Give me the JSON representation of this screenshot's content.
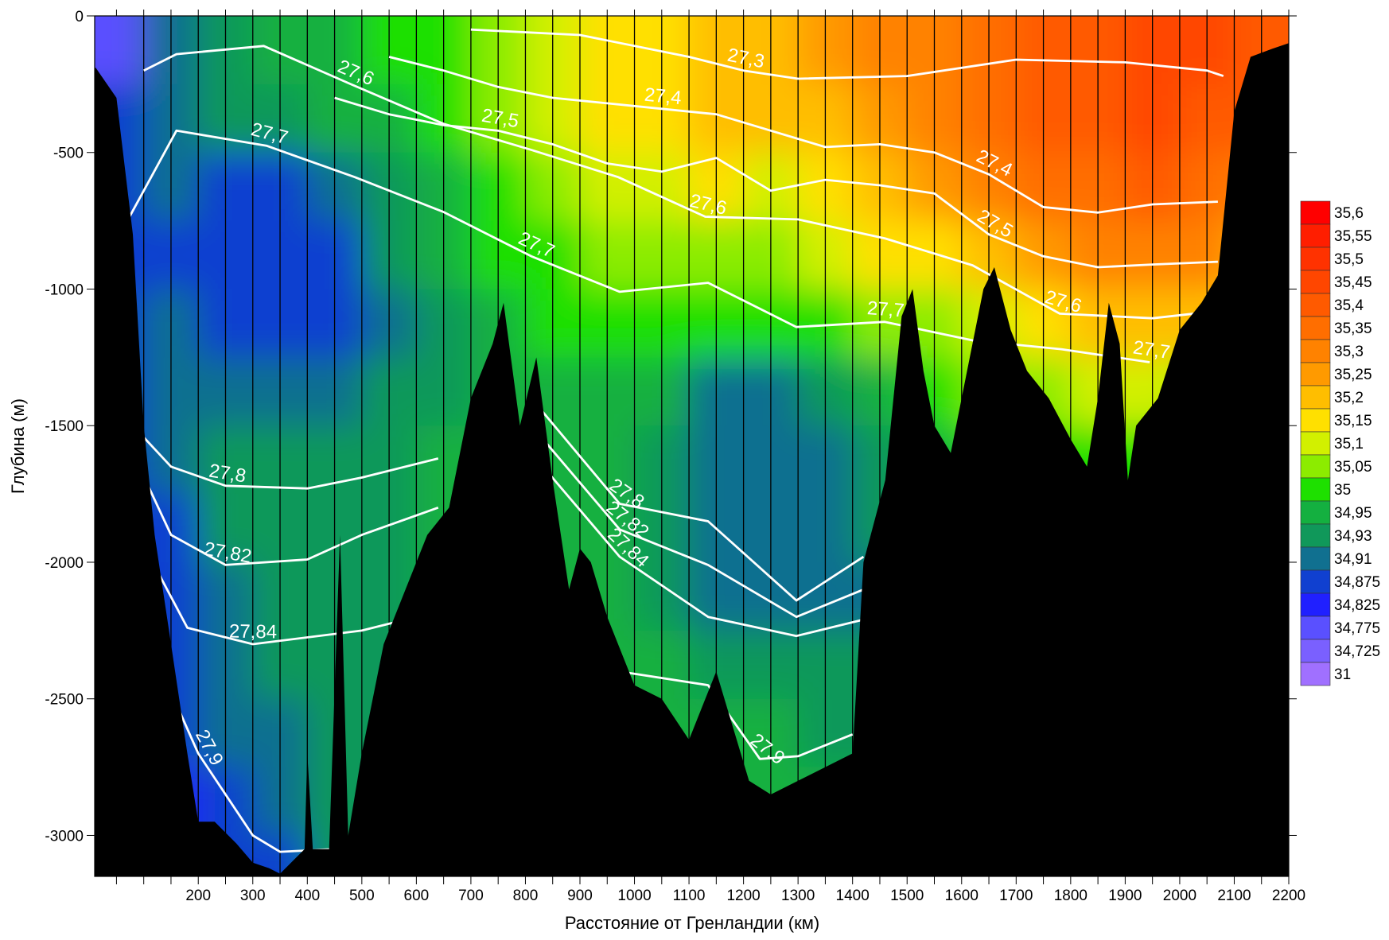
{
  "chart_data": {
    "type": "section",
    "x_label": "Расстояние от Гренландии (км)",
    "y_label": "Глубина (м)",
    "xlim": [
      10,
      2200
    ],
    "ylim": [
      -3150,
      0
    ],
    "xticks": [
      200,
      300,
      400,
      500,
      600,
      700,
      800,
      900,
      1000,
      1100,
      1200,
      1300,
      1400,
      1500,
      1600,
      1700,
      1800,
      1900,
      2000,
      2100,
      2200
    ],
    "xminorticks": [
      50,
      100,
      150,
      250,
      350,
      450,
      550,
      650,
      750,
      850,
      950,
      1050,
      1150,
      1250,
      1350,
      1450,
      1550,
      1650,
      1750,
      1850,
      1950,
      2050,
      2150
    ],
    "yticks": [
      0,
      -500,
      -1000,
      -1500,
      -2000,
      -2500,
      -3000
    ],
    "stations": [
      100,
      150,
      200,
      250,
      300,
      350,
      400,
      450,
      500,
      550,
      600,
      650,
      700,
      750,
      800,
      850,
      900,
      950,
      1000,
      1050,
      1100,
      1150,
      1200,
      1250,
      1300,
      1350,
      1400,
      1450,
      1500,
      1550,
      1600,
      1650,
      1700,
      1750,
      1800,
      1850,
      1900,
      1950,
      2000,
      2050,
      2100,
      2150
    ],
    "colorbar": [
      {
        "value": 35.6,
        "label": "35,6",
        "color": "#ff0000"
      },
      {
        "value": 35.55,
        "label": "35,55",
        "color": "#ff1e00"
      },
      {
        "value": 35.5,
        "label": "35,5",
        "color": "#ff3200"
      },
      {
        "value": 35.45,
        "label": "35,45",
        "color": "#ff4600"
      },
      {
        "value": 35.4,
        "label": "35,4",
        "color": "#ff5a00"
      },
      {
        "value": 35.35,
        "label": "35,35",
        "color": "#ff6e00"
      },
      {
        "value": 35.3,
        "label": "35,3",
        "color": "#ff8200"
      },
      {
        "value": 35.25,
        "label": "35,25",
        "color": "#ff9a00"
      },
      {
        "value": 35.2,
        "label": "35,2",
        "color": "#ffbe00"
      },
      {
        "value": 35.15,
        "label": "35,15",
        "color": "#ffe000"
      },
      {
        "value": 35.1,
        "label": "35,1",
        "color": "#d2f000"
      },
      {
        "value": 35.05,
        "label": "35,05",
        "color": "#8cec00"
      },
      {
        "value": 35,
        "color": "#1ee000"
      },
      {
        "value": 34.95,
        "label": "34,95",
        "color": "#14b040"
      },
      {
        "value": 34.93,
        "label": "34,93",
        "color": "#10985a"
      },
      {
        "value": 34.91,
        "label": "34,91",
        "color": "#107090"
      },
      {
        "value": 34.875,
        "label": "34,875",
        "color": "#1040d0"
      },
      {
        "value": 34.825,
        "label": "34,825",
        "color": "#2020ff"
      },
      {
        "value": 34.775,
        "label": "34,775",
        "color": "#5a50ff"
      },
      {
        "value": 34.725,
        "label": "34,725",
        "color": "#7a60ff"
      },
      {
        "value": 31,
        "color": "#a070ff"
      }
    ],
    "salinity": {
      "x": [
        50,
        150,
        250,
        350,
        450,
        550,
        650,
        750,
        850,
        950,
        1050,
        1150,
        1250,
        1350,
        1450,
        1550,
        1650,
        1750,
        1850,
        1950,
        2050,
        2150
      ],
      "depth": [
        -125,
        -375,
        -625,
        -875,
        -1125,
        -1375,
        -1625,
        -1875,
        -2125,
        -2375,
        -2625,
        -2875,
        -3125
      ],
      "values": [
        [
          34.8,
          34.92,
          34.94,
          34.96,
          34.98,
          35.0,
          35.02,
          35.06,
          35.12,
          35.16,
          35.18,
          35.2,
          35.22,
          35.25,
          35.3,
          35.33,
          35.37,
          35.4,
          35.43,
          35.45,
          35.45,
          35.4
        ],
        [
          34.9,
          34.92,
          34.93,
          34.94,
          34.95,
          34.97,
          35.0,
          35.05,
          35.12,
          35.15,
          35.17,
          35.2,
          35.2,
          35.22,
          35.27,
          35.3,
          35.35,
          35.4,
          35.43,
          35.45,
          35.42,
          35.4
        ],
        [
          34.9,
          34.91,
          34.89,
          34.9,
          34.92,
          34.94,
          34.97,
          35.02,
          35.07,
          35.1,
          35.12,
          35.15,
          35.14,
          35.17,
          35.22,
          35.25,
          35.3,
          35.35,
          35.38,
          35.4,
          35.38,
          35.3
        ],
        [
          34.9,
          34.9,
          34.88,
          34.88,
          34.9,
          34.93,
          34.95,
          35.0,
          35.03,
          35.05,
          35.07,
          35.08,
          35.07,
          35.1,
          35.15,
          35.17,
          35.22,
          35.28,
          35.32,
          35.33,
          35.3,
          35.2
        ],
        [
          34.9,
          34.91,
          34.88,
          34.88,
          34.9,
          34.92,
          34.94,
          34.97,
          35.0,
          35.01,
          35.02,
          35.0,
          35.0,
          35.02,
          35.05,
          35.07,
          35.1,
          35.15,
          35.2,
          35.22,
          35.2,
          35.1
        ],
        [
          34.9,
          34.92,
          34.91,
          34.91,
          34.92,
          34.93,
          34.94,
          34.96,
          34.98,
          34.98,
          34.95,
          34.92,
          34.92,
          34.93,
          34.95,
          35.0,
          35.05,
          35.07,
          35.1,
          35.1,
          35.05,
          35.0
        ],
        [
          34.9,
          34.92,
          34.93,
          34.93,
          34.93,
          34.94,
          34.95,
          34.96,
          34.97,
          34.96,
          34.93,
          34.91,
          34.91,
          34.92,
          34.94,
          34.97,
          35.0,
          35.02,
          35.03,
          35.02,
          35.0,
          35.0
        ],
        [
          34.88,
          34.9,
          34.93,
          34.93,
          34.93,
          34.94,
          34.95,
          34.96,
          34.97,
          34.96,
          34.93,
          34.91,
          34.91,
          34.91,
          34.93,
          34.95,
          34.97,
          35.0,
          35.0,
          35.0,
          35.0,
          35.0
        ],
        [
          34.88,
          34.9,
          34.92,
          34.93,
          34.93,
          34.94,
          34.95,
          34.96,
          34.97,
          34.96,
          34.94,
          34.92,
          34.91,
          34.91,
          34.92,
          34.95,
          34.95,
          34.95,
          34.95,
          34.95,
          34.95,
          34.95
        ],
        [
          34.86,
          34.88,
          34.92,
          34.93,
          34.93,
          34.94,
          34.95,
          34.96,
          34.97,
          34.97,
          34.95,
          34.94,
          34.93,
          34.93,
          34.93,
          34.95,
          34.95,
          34.95,
          34.95,
          34.95,
          34.95,
          34.95
        ],
        [
          34.86,
          34.88,
          34.91,
          34.92,
          34.93,
          34.94,
          34.95,
          34.96,
          34.97,
          34.97,
          34.97,
          34.96,
          34.95,
          34.94,
          34.94,
          34.95,
          34.95,
          34.95,
          34.95,
          34.95,
          34.95,
          34.95
        ],
        [
          34.85,
          34.86,
          34.89,
          34.91,
          34.93,
          34.94,
          34.95,
          34.96,
          34.97,
          34.97,
          34.97,
          34.97,
          34.96,
          34.95,
          34.95,
          34.95,
          34.95,
          34.95,
          34.95,
          34.95,
          34.95,
          34.95
        ],
        [
          34.85,
          34.86,
          34.88,
          34.9,
          34.93,
          34.94,
          34.95,
          34.96,
          34.97,
          34.97,
          34.97,
          34.97,
          34.96,
          34.95,
          34.95,
          34.95,
          34.95,
          34.95,
          34.95,
          34.95,
          34.95,
          34.95
        ]
      ]
    },
    "isopycnals": [
      {
        "name": "27,3",
        "color": "#ffffff",
        "x": [
          700,
          900,
          1100,
          1200,
          1300,
          1500,
          1700,
          1900,
          2050,
          2080
        ],
        "values": [
          -50,
          -70,
          -150,
          -200,
          -230,
          -220,
          -160,
          -170,
          -200,
          -220
        ]
      },
      {
        "name": "27,4",
        "color": "#ffffff",
        "x": [
          550,
          650,
          750,
          850,
          950,
          1050,
          1150,
          1250,
          1350,
          1450,
          1550,
          1650,
          1750,
          1850,
          1950,
          2070
        ],
        "values": [
          -150,
          -200,
          -260,
          -300,
          -320,
          -340,
          -360,
          -420,
          -480,
          -470,
          -500,
          -580,
          -700,
          -720,
          -690,
          -680
        ]
      },
      {
        "name": "27,5",
        "color": "#ffffff",
        "x": [
          450,
          550,
          650,
          750,
          850,
          950,
          1050,
          1150,
          1250,
          1350,
          1450,
          1550,
          1650,
          1750,
          1850,
          1950,
          2070
        ],
        "values": [
          -300,
          -360,
          -400,
          -420,
          -470,
          -540,
          -570,
          -520,
          -640,
          -600,
          -620,
          -650,
          -800,
          -880,
          -920,
          -910,
          -900
        ]
      },
      {
        "name": "27,6",
        "color": "#ffffff",
        "x": [
          100,
          160,
          320,
          480,
          650,
          810,
          970,
          1130,
          1300,
          1460,
          1620,
          1780,
          1950,
          2070
        ],
        "values": [
          -200,
          -140,
          -110,
          -250,
          -395,
          -490,
          -590,
          -735,
          -745,
          -815,
          -913,
          -1090,
          -1107,
          -1080
        ]
      },
      {
        "name": "27,7",
        "color": "#ffffff",
        "x": [
          70,
          160,
          325,
          487,
          650,
          811,
          973,
          1135,
          1297,
          1459,
          1621,
          1783,
          1945
        ],
        "values": [
          -750,
          -420,
          -475,
          -590,
          -718,
          -880,
          -1010,
          -977,
          -1139,
          -1120,
          -1188,
          -1220,
          -1268
        ]
      },
      {
        "name": "27,8",
        "color": "#ffffff",
        "x": [
          80,
          150,
          250,
          400,
          500,
          640,
          700,
          811,
          973,
          1135,
          1297,
          1420
        ],
        "values": [
          -1500,
          -1650,
          -1720,
          -1730,
          -1690,
          -1620,
          null,
          -1400,
          -1786,
          -1850,
          -2140,
          -1980
        ]
      },
      {
        "name": "27,82",
        "color": "#ffffff",
        "x": [
          80,
          150,
          250,
          400,
          500,
          640,
          700,
          811,
          973,
          1135,
          1297,
          1420
        ],
        "values": [
          -1600,
          -1900,
          -2010,
          -1990,
          -1900,
          -1800,
          null,
          -1500,
          -1880,
          -2010,
          -2200,
          -2100
        ]
      },
      {
        "name": "27,84",
        "color": "#ffffff",
        "x": [
          90,
          180,
          300,
          500,
          640,
          700,
          811,
          973,
          1135,
          1297,
          1420
        ],
        "values": [
          -1900,
          -2240,
          -2300,
          -2250,
          -2180,
          null,
          -1600,
          -1980,
          -2200,
          -2270,
          -2210
        ]
      },
      {
        "name": "27,9",
        "color": "#ffffff",
        "x": [
          100,
          200,
          300,
          350,
          450,
          700,
          973,
          1135,
          1230,
          1300,
          1400
        ],
        "values": [
          -2250,
          -2700,
          -3000,
          -3060,
          -3050,
          null,
          -2400,
          -2450,
          -2720,
          -2710,
          -2630
        ]
      }
    ],
    "bathymetry": {
      "color": "#000000",
      "x": [
        12,
        50,
        80,
        100,
        120,
        150,
        180,
        200,
        230,
        270,
        300,
        330,
        350,
        380,
        395,
        400,
        410,
        440,
        460,
        475,
        500,
        540,
        580,
        620,
        660,
        700,
        740,
        760,
        790,
        820,
        850,
        880,
        900,
        920,
        950,
        980,
        1000,
        1050,
        1100,
        1130,
        1150,
        1180,
        1210,
        1250,
        1300,
        1350,
        1400,
        1420,
        1460,
        1490,
        1510,
        1530,
        1550,
        1580,
        1610,
        1640,
        1660,
        1690,
        1720,
        1760,
        1800,
        1830,
        1850,
        1870,
        1890,
        1905,
        1920,
        1960,
        2000,
        2040,
        2070,
        2100,
        2130,
        2170,
        2200
      ],
      "depth": [
        -190,
        -300,
        -800,
        -1500,
        -1900,
        -2300,
        -2700,
        -2950,
        -2950,
        -3030,
        -3100,
        -3120,
        -3140,
        -3080,
        -3050,
        -2700,
        -3050,
        -3050,
        -1900,
        -3000,
        -2700,
        -2300,
        -2100,
        -1900,
        -1800,
        -1400,
        -1200,
        -1050,
        -1500,
        -1250,
        -1700,
        -2100,
        -1950,
        -2000,
        -2200,
        -2350,
        -2450,
        -2500,
        -2650,
        -2500,
        -2400,
        -2600,
        -2800,
        -2850,
        -2800,
        -2750,
        -2700,
        -2000,
        -1700,
        -1100,
        -1000,
        -1300,
        -1500,
        -1600,
        -1300,
        -1000,
        -920,
        -1150,
        -1300,
        -1400,
        -1550,
        -1650,
        -1400,
        -1050,
        -1200,
        -1700,
        -1500,
        -1400,
        -1150,
        -1050,
        -950,
        -350,
        -150,
        -120,
        -100
      ]
    }
  }
}
